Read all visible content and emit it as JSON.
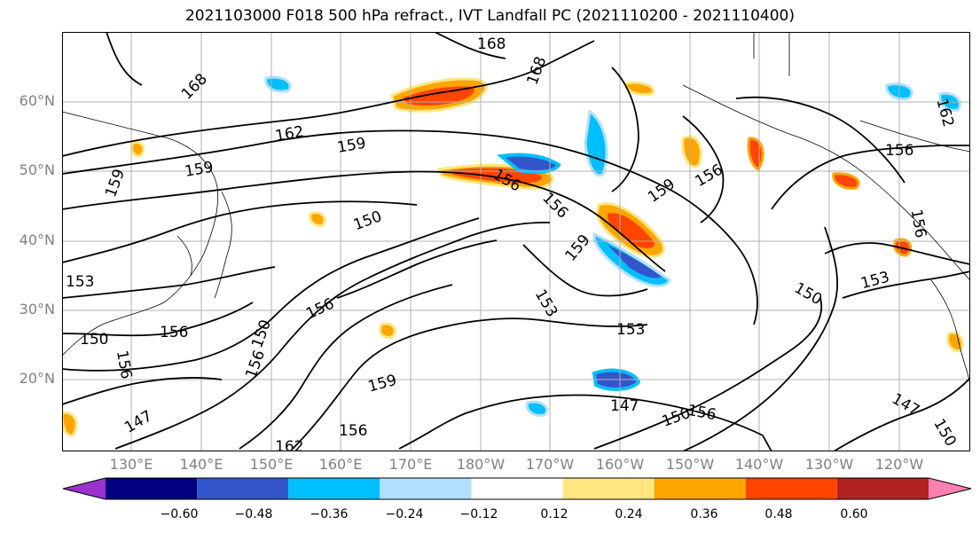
{
  "title": "2021103000 F018 500 hPa refract., IVT Landfall PC (2021110200 - 2021110400)",
  "lat_labels": [
    "60°N",
    "50°N",
    "40°N",
    "30°N",
    "20°N"
  ],
  "lon_labels": [
    "130°E",
    "140°E",
    "150°E",
    "160°E",
    "170°E",
    "180°W",
    "170°W",
    "160°W",
    "150°W",
    "140°W",
    "130°W",
    "120°W"
  ],
  "colorbar": {
    "tick_labels": [
      "−0.60",
      "−0.48",
      "−0.36",
      "−0.24",
      "−0.12",
      "0.12",
      "0.24",
      "0.36",
      "0.48",
      "0.60"
    ],
    "colors": [
      "#9933cc",
      "#000080",
      "#3355cc",
      "#00bfff",
      "#b0e0ff",
      "#ffffff",
      "#ffe680",
      "#ffa500",
      "#ff4500",
      "#b22222",
      "#ff80b0"
    ]
  },
  "contour_labels": [
    "168",
    "168",
    "162",
    "159",
    "159",
    "159",
    "156",
    "156",
    "156",
    "153",
    "153",
    "153",
    "153",
    "150",
    "150",
    "150",
    "150",
    "150",
    "147",
    "147",
    "147",
    "162",
    "156",
    "156",
    "159",
    "159",
    "156",
    "156",
    "156",
    "168",
    "162",
    "156",
    "156",
    "159",
    "150",
    "156"
  ],
  "shading_colors": {
    "positive_strong": "#ff4500",
    "positive": "#ffa500",
    "positive_weak": "#ffe680",
    "negative_weak": "#b0e0ff",
    "negative": "#00bfff",
    "negative_strong": "#3355cc"
  }
}
